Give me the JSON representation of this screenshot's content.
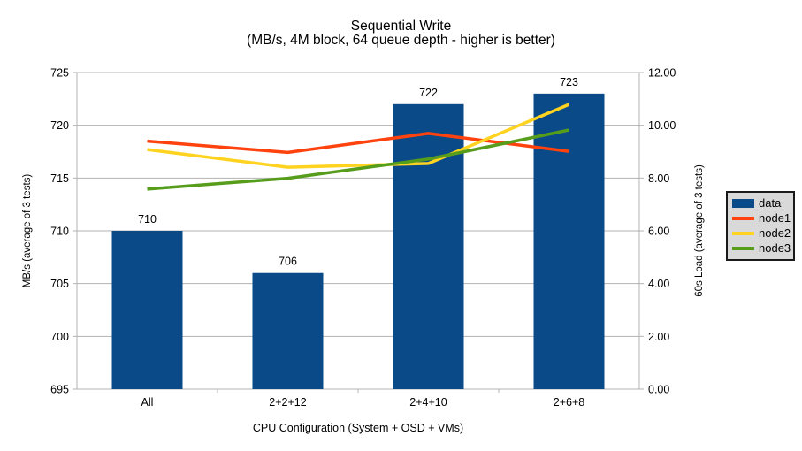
{
  "chart_data": {
    "type": "bar+line",
    "title": "Sequential Write",
    "subtitle": "(MB/s, 4M block, 64 queue depth - higher is better)",
    "categories": [
      "All",
      "2+2+12",
      "2+4+10",
      "2+6+8"
    ],
    "bar_series": {
      "name": "data",
      "axis": "left",
      "color": "#0a4a88",
      "values": [
        710,
        706,
        722,
        723
      ]
    },
    "line_series": [
      {
        "name": "node1",
        "axis": "right",
        "color": "#ff420e",
        "values": [
          9.4,
          8.97,
          9.69,
          9.01
        ]
      },
      {
        "name": "node2",
        "axis": "right",
        "color": "#ffd320",
        "values": [
          9.08,
          8.41,
          8.55,
          10.79
        ]
      },
      {
        "name": "node3",
        "axis": "right",
        "color": "#579d1c",
        "values": [
          7.58,
          7.99,
          8.72,
          9.82
        ]
      }
    ],
    "x_axis": {
      "title": "CPU Configuration (System + OSD + VMs)"
    },
    "left_axis": {
      "title": "MB/s (average of 3 tests)",
      "min": 695,
      "max": 725,
      "step": 5
    },
    "right_axis": {
      "title": "60s Load (average of 3 tests)",
      "min": 0,
      "max": 12,
      "step": 2,
      "decimals": 2
    },
    "legend": {
      "position": "right",
      "entries": [
        "data",
        "node1",
        "node2",
        "node3"
      ]
    },
    "grid": "horizontal",
    "ylim_left": [
      695,
      725
    ],
    "ylim_right": [
      0,
      12
    ]
  },
  "style": {
    "background": "#ffffff",
    "text_color": "#000000",
    "grid_color": "#b3b3b3",
    "axis_color": "#b3b3b3",
    "legend_bg": "#d9d9d9",
    "legend_border": "#1a1a1a"
  }
}
